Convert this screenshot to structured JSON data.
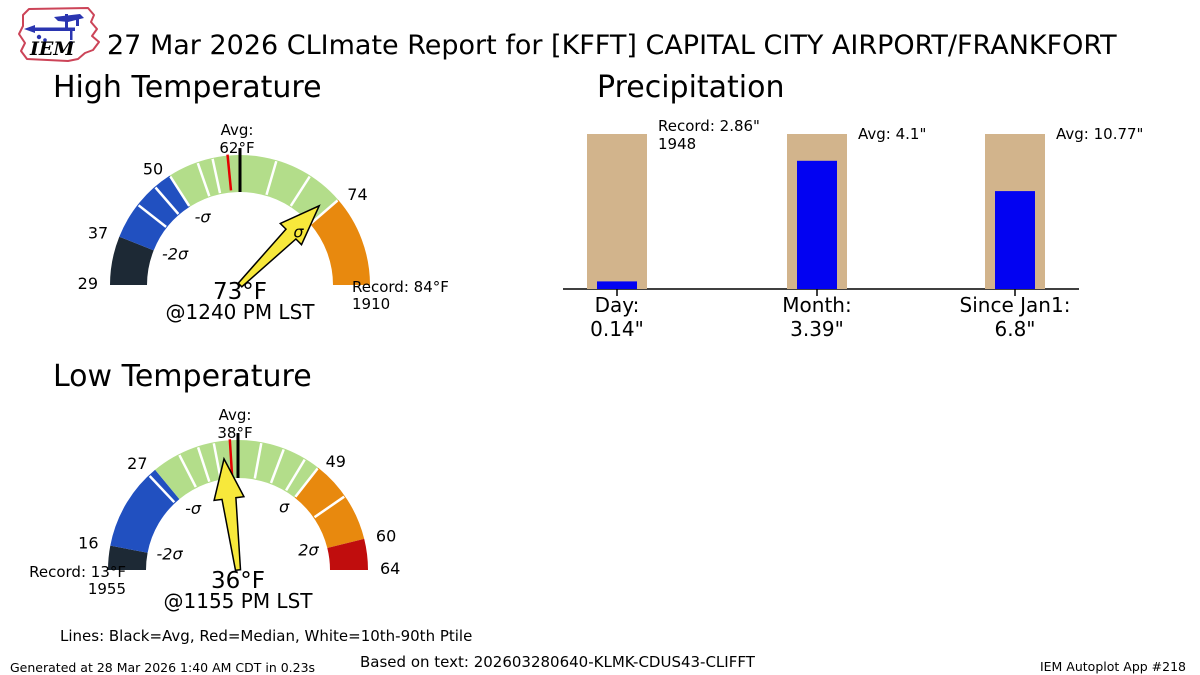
{
  "header": {
    "title": "27 Mar 2026 CLImate Report for [KFFT] CAPITAL CITY AIRPORT/FRANKFORT",
    "logo_text": "IEM"
  },
  "chart_data": [
    {
      "type": "gauge",
      "title": "High Temperature",
      "min": 29,
      "avg": 62,
      "median": 60,
      "max": 84,
      "segments": [
        {
          "from": 29,
          "to": 37,
          "color": "#1d2935"
        },
        {
          "from": 37,
          "to": 50,
          "color": "#2150c0"
        },
        {
          "from": 50,
          "to": 74,
          "color": "#b3dd8a"
        },
        {
          "from": 74,
          "to": 84,
          "color": "#e8890e"
        }
      ],
      "percentile_values": [
        43,
        47,
        50,
        55,
        57.5,
        66,
        70,
        74
      ],
      "outer_labels": [
        {
          "value": 29,
          "text": "29"
        },
        {
          "value": 37,
          "text": "37"
        },
        {
          "value": 50,
          "text": "50"
        },
        {
          "value": 74,
          "text": "74"
        }
      ],
      "sigma_labels": [
        {
          "value": 37,
          "text": "-2σ"
        },
        {
          "value": 50,
          "text": "-σ"
        },
        {
          "value": 74,
          "text": "σ"
        }
      ],
      "avg_label_lines": [
        "Avg:",
        "62°F"
      ],
      "record": {
        "lines": [
          "Record: 84°F",
          "1910"
        ],
        "side": "right"
      },
      "needle": {
        "value": 73,
        "label": "73°F",
        "time": "@1240 PM LST"
      }
    },
    {
      "type": "bar",
      "title": "Precipitation",
      "categories": [
        "Day:",
        "Month:",
        "Since Jan1:"
      ],
      "values": [
        0.14,
        3.39,
        6.8
      ],
      "value_labels": [
        "0.14\"",
        "3.39\"",
        "6.8\""
      ],
      "reference_values": [
        2.86,
        4.1,
        10.77
      ],
      "reference_annotations": [
        [
          "Record: 2.86\"",
          "1948"
        ],
        [
          "Avg: 4.1\""
        ],
        [
          "Avg: 10.77\""
        ]
      ],
      "xlabel": "",
      "ylabel": ""
    },
    {
      "type": "gauge",
      "title": "Low Temperature",
      "min": 13,
      "avg": 38,
      "median": 37,
      "max": 64,
      "segments": [
        {
          "from": 13,
          "to": 16,
          "color": "#1d2935"
        },
        {
          "from": 16,
          "to": 27,
          "color": "#2150c0"
        },
        {
          "from": 27,
          "to": 49,
          "color": "#b3dd8a"
        },
        {
          "from": 49,
          "to": 60,
          "color": "#e8890e"
        },
        {
          "from": 60,
          "to": 64,
          "color": "#c00d0d"
        }
      ],
      "percentile_values": [
        26,
        30.5,
        33,
        35,
        41,
        44,
        47,
        49,
        54
      ],
      "outer_labels": [
        {
          "value": 16,
          "text": "16"
        },
        {
          "value": 27,
          "text": "27"
        },
        {
          "value": 49,
          "text": "49"
        },
        {
          "value": 60,
          "text": "60"
        },
        {
          "value": 64,
          "text": "64"
        }
      ],
      "sigma_labels": [
        {
          "value": 16,
          "text": "-2σ"
        },
        {
          "value": 27,
          "text": "-σ"
        },
        {
          "value": 49,
          "text": "σ"
        },
        {
          "value": 60,
          "text": "2σ"
        }
      ],
      "avg_label_lines": [
        "Avg:",
        "38°F"
      ],
      "record": {
        "lines": [
          "Record: 13°F",
          "1955"
        ],
        "side": "left"
      },
      "needle": {
        "value": 36,
        "label": "36°F",
        "time": "@1155 PM LST"
      }
    }
  ],
  "legend_note": "Lines: Black=Avg, Red=Median, White=10th-90th Ptile",
  "footer": {
    "generated": "Generated at 28 Mar 2026 1:40 AM CDT in 0.23s",
    "based_on": "Based on text: 202603280640-KLMK-CDUS43-CLIFFT",
    "app": "IEM Autoplot App #218"
  },
  "colors": {
    "needle": "#f7e83b",
    "median_line": "#e60000",
    "avg_line": "#000000",
    "percentile_line": "#ffffff",
    "precip_bar": "#0202f2",
    "precip_ref": "#d2b48c",
    "axis": "#000000",
    "logo_outline": "#cc4458",
    "logo_vane": "#2a35b0"
  }
}
